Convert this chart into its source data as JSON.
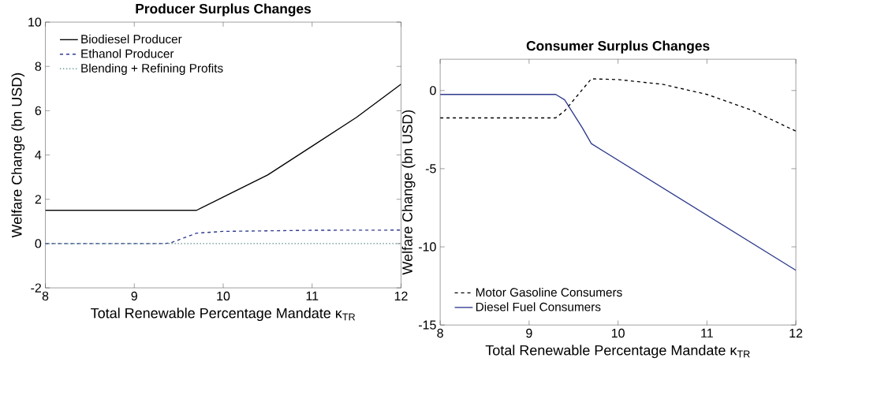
{
  "chart_data": [
    {
      "type": "line",
      "title": "Producer Surplus Changes",
      "xlabel": "Total Renewable Percentage Mandate κ$_{TR}$",
      "ylabel": "Welfare Change (bn USD)",
      "xlim": [
        8,
        12
      ],
      "ylim": [
        -2,
        10
      ],
      "xticks": [
        8,
        9,
        10,
        11,
        12
      ],
      "yticks": [
        -2,
        0,
        2,
        4,
        6,
        8,
        10
      ],
      "legend": "top left",
      "grid": false,
      "series": [
        {
          "name": "Biodiesel Producer",
          "color": "#000000",
          "line_style": "solid",
          "x": [
            8,
            9.7,
            10,
            10.5,
            11,
            11.5,
            12
          ],
          "values": [
            1.5,
            1.5,
            2.1,
            3.1,
            4.4,
            5.7,
            7.2
          ]
        },
        {
          "name": "Ethanol Producer",
          "color": "#2e3a8c",
          "line_style": "dashed",
          "x": [
            8,
            9.3,
            9.4,
            9.7,
            10,
            11,
            12
          ],
          "values": [
            0,
            0,
            0.02,
            0.47,
            0.55,
            0.6,
            0.61
          ]
        },
        {
          "name": "Blending + Refining Profits",
          "color": "#4f8080",
          "line_style": "dotted",
          "x": [
            8,
            12
          ],
          "values": [
            0,
            0
          ]
        }
      ]
    },
    {
      "type": "line",
      "title": "Consumer Surplus Changes",
      "xlabel": "Total Renewable Percentage Mandate κ$_{TR}$",
      "ylabel": "Welfare Change (bn USD)",
      "xlim": [
        8,
        12
      ],
      "ylim": [
        -15,
        2
      ],
      "xticks": [
        8,
        9,
        10,
        11,
        12
      ],
      "yticks": [
        -15,
        -10,
        -5,
        0
      ],
      "legend": "bottom left",
      "grid": false,
      "series": [
        {
          "name": "Motor Gasoline Consumers",
          "color": "#000000",
          "line_style": "dashed",
          "x": [
            8,
            9.3,
            9.4,
            9.7,
            10,
            10.5,
            11,
            11.5,
            12
          ],
          "values": [
            -1.75,
            -1.75,
            -1.3,
            0.75,
            0.7,
            0.4,
            -0.25,
            -1.25,
            -2.6
          ]
        },
        {
          "name": "Diesel Fuel Consumers",
          "color": "#2e3a8c",
          "line_style": "solid",
          "x": [
            8,
            9.3,
            9.4,
            9.6,
            9.7,
            12
          ],
          "values": [
            -0.25,
            -0.25,
            -0.6,
            -2.4,
            -3.4,
            -11.5
          ]
        }
      ]
    }
  ]
}
